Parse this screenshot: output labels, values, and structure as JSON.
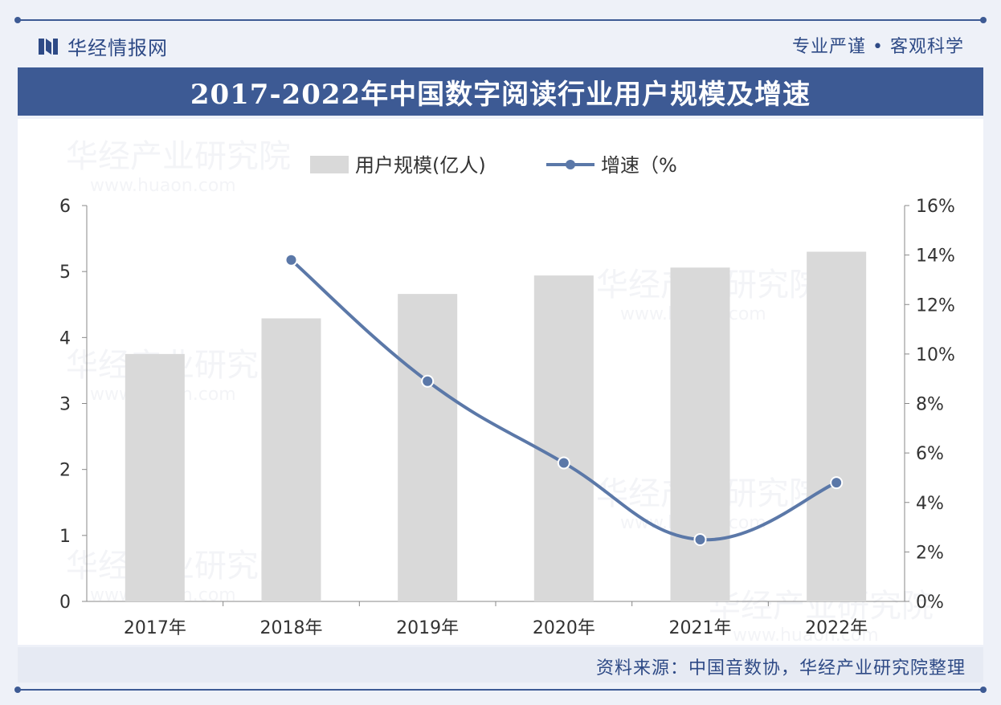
{
  "header": {
    "brand": "华经情报网",
    "slogan": "专业严谨 • 客观科学",
    "title": "2017-2022年中国数字阅读行业用户规模及增速"
  },
  "footer": {
    "source": "资料来源：中国音数协，华经产业研究院整理"
  },
  "watermark": {
    "text": "华经产业研究院",
    "url": "www.huaon.com"
  },
  "colors": {
    "bar": "#d9d9d9",
    "line": "#5b78a8",
    "accent": "#3d5a94"
  },
  "chart_data": {
    "type": "bar",
    "categories": [
      "2017年",
      "2018年",
      "2019年",
      "2020年",
      "2021年",
      "2022年"
    ],
    "series": [
      {
        "name": "用户规模(亿人)",
        "type": "bar",
        "axis": "left",
        "values": [
          3.75,
          4.29,
          4.66,
          4.94,
          5.06,
          5.3
        ]
      },
      {
        "name": "增速（%",
        "type": "line",
        "axis": "right",
        "values": [
          null,
          13.8,
          8.9,
          5.6,
          2.5,
          4.8
        ]
      }
    ],
    "left_axis": {
      "min": 0,
      "max": 6,
      "ticks": [
        "0",
        "1",
        "2",
        "3",
        "4",
        "5",
        "6"
      ]
    },
    "right_axis": {
      "min": 0,
      "max": 16,
      "ticks": [
        "0%",
        "2%",
        "4%",
        "6%",
        "8%",
        "10%",
        "12%",
        "14%",
        "16%"
      ]
    },
    "grid": false,
    "legend_position": "top-center"
  }
}
